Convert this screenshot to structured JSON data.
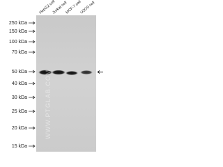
{
  "markers": [
    "250 kDa",
    "150 kDa",
    "100 kDa",
    "70 kDa",
    "50 kDa",
    "40 kDa",
    "30 kDa",
    "25 kDa",
    "20 kDa",
    "15 kDa"
  ],
  "lanes": [
    "HepG2 cell",
    "Jurkat cell",
    "MCF-7 cell",
    "U2OS cell"
  ],
  "watermark": "WWW.PTGLAB.COM"
}
